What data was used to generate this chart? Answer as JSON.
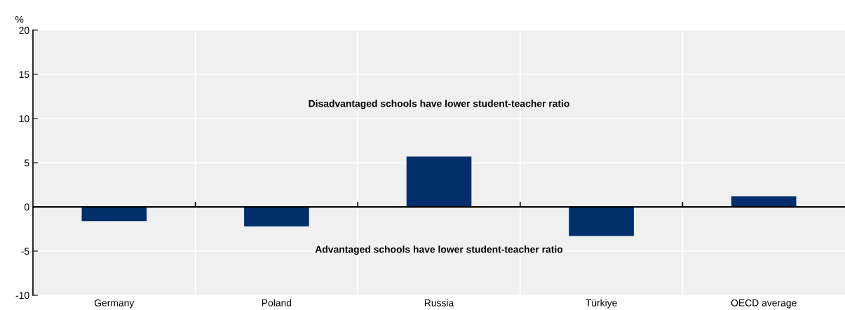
{
  "chart_data": {
    "type": "bar",
    "ylabel": "%",
    "categories": [
      "Germany",
      "Poland",
      "Russia",
      "Türkiye",
      "OECD average"
    ],
    "values": [
      -1.6,
      -2.2,
      5.7,
      -3.3,
      1.2
    ],
    "color": "#002f6c",
    "ylim": [
      -10,
      20
    ],
    "yticks": [
      -10,
      -5,
      0,
      5,
      10,
      15,
      20
    ],
    "grid": "y",
    "annotations": [
      "Disadvantaged schools have lower student-teacher ratio",
      "Advantaged schools have lower student-teacher ratio"
    ]
  }
}
